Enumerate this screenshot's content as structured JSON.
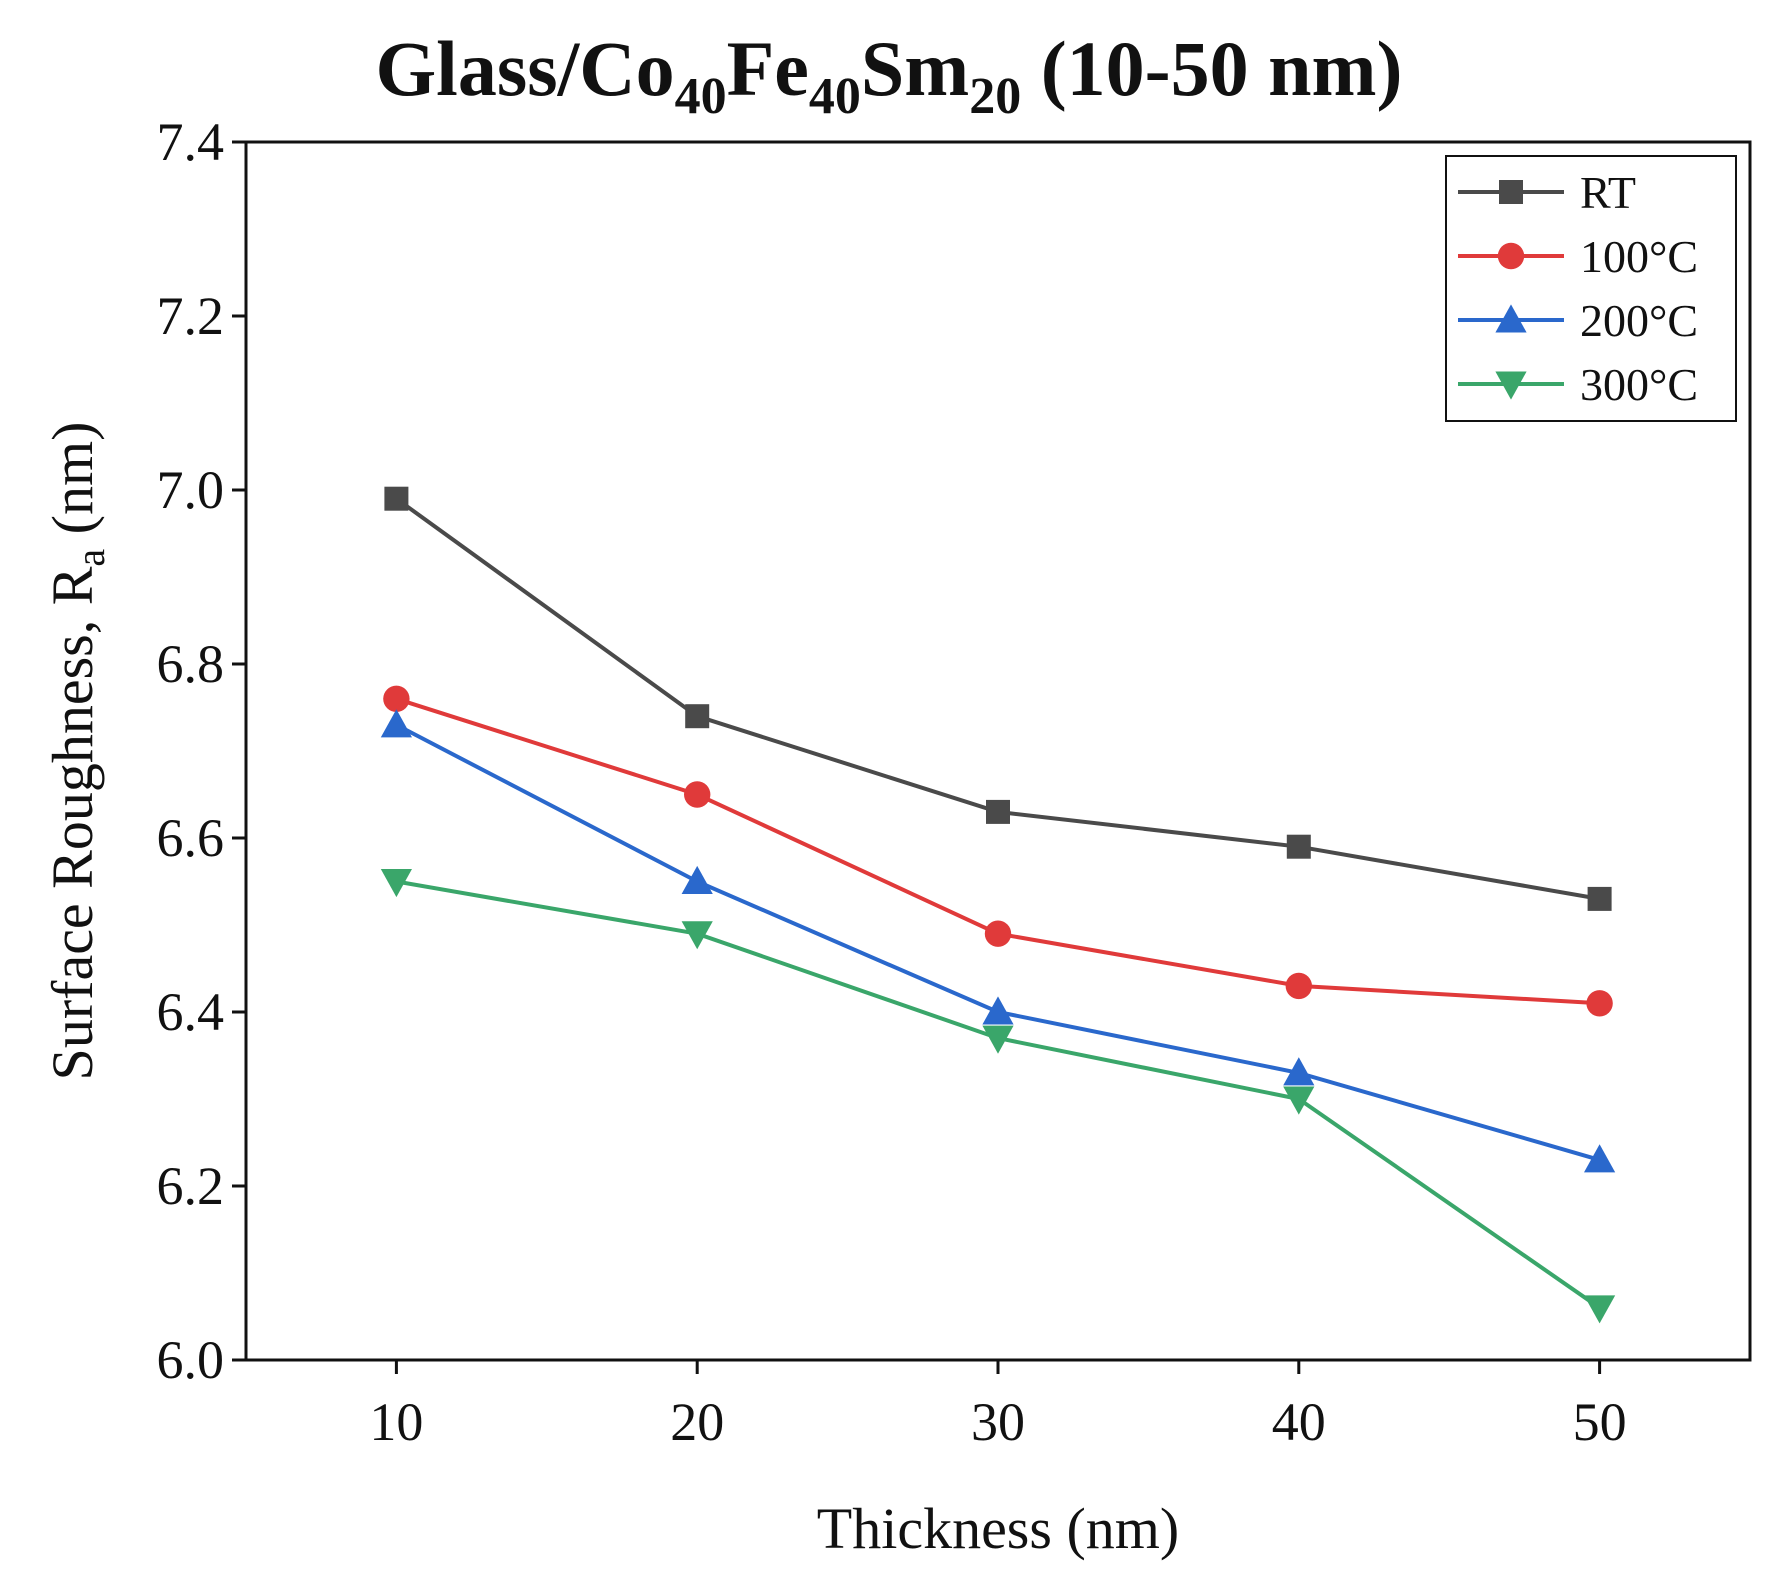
{
  "chart_data": {
    "type": "line",
    "title": {
      "prefix": "Glass/Co",
      "co_sub": "40",
      "fe": "Fe",
      "fe_sub": "40",
      "sm": "Sm",
      "sm_sub": "20",
      "suffix": " (10-50 nm)"
    },
    "xlabel": "Thickness (nm)",
    "ylabel": {
      "main": "Surface Roughness, R",
      "sub": "a",
      "unit": " (nm)"
    },
    "x": [
      10,
      20,
      30,
      40,
      50
    ],
    "x_ticks": [
      "10",
      "20",
      "30",
      "40",
      "50"
    ],
    "xlim": [
      5,
      55
    ],
    "ylim": [
      6.0,
      7.4
    ],
    "y_ticks": [
      "6.0",
      "6.2",
      "6.4",
      "6.6",
      "6.8",
      "7.0",
      "7.2",
      "7.4"
    ],
    "legend_position": "top-right",
    "series": [
      {
        "name": "RT",
        "color": "#4a4a4a",
        "marker": "square",
        "values": [
          6.99,
          6.74,
          6.63,
          6.59,
          6.53
        ]
      },
      {
        "name": "100°C",
        "color": "#e03a3a",
        "marker": "circle",
        "values": [
          6.76,
          6.65,
          6.49,
          6.43,
          6.41
        ]
      },
      {
        "name": "200°C",
        "color": "#2a68cc",
        "marker": "triangle-up",
        "values": [
          6.73,
          6.55,
          6.4,
          6.33,
          6.23
        ]
      },
      {
        "name": "300°C",
        "color": "#3aa66a",
        "marker": "triangle-down",
        "values": [
          6.55,
          6.49,
          6.37,
          6.3,
          6.06
        ]
      }
    ]
  }
}
